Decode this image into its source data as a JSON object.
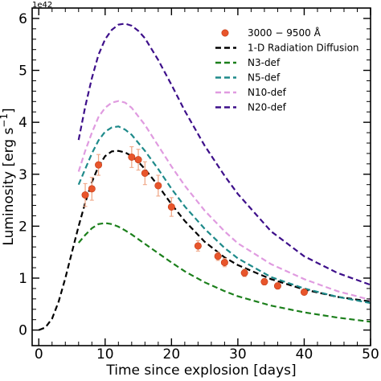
{
  "chart_data": {
    "type": "line",
    "offset_label": "1e42",
    "xlabel": "Time since explosion [days]",
    "ylabel": "Luminosity [erg s$^{-1}$]",
    "xlim": [
      -1,
      50
    ],
    "ylim": [
      -0.3,
      6.2
    ],
    "xticks": [
      0,
      10,
      20,
      30,
      40,
      50
    ],
    "yticks": [
      0,
      1,
      2,
      3,
      4,
      5,
      6
    ],
    "legend_position": "upper right",
    "observations": {
      "name": "3000 − 9500 Å",
      "color": "#e8552b",
      "errorbar_color": "#f0a888",
      "points": [
        {
          "x": 7.0,
          "y": 2.6,
          "err": 0.22
        },
        {
          "x": 8.0,
          "y": 2.72,
          "err": 0.22
        },
        {
          "x": 9.0,
          "y": 3.18,
          "err": 0.2
        },
        {
          "x": 14.0,
          "y": 3.33,
          "err": 0.2
        },
        {
          "x": 15.0,
          "y": 3.28,
          "err": 0.2
        },
        {
          "x": 16.0,
          "y": 3.02,
          "err": 0.22
        },
        {
          "x": 18.0,
          "y": 2.78,
          "err": 0.2
        },
        {
          "x": 20.0,
          "y": 2.37,
          "err": 0.18
        },
        {
          "x": 24.0,
          "y": 1.62,
          "err": 0.1
        },
        {
          "x": 27.0,
          "y": 1.42,
          "err": 0.08
        },
        {
          "x": 28.0,
          "y": 1.3,
          "err": 0.08
        },
        {
          "x": 31.0,
          "y": 1.1,
          "err": 0.07
        },
        {
          "x": 34.0,
          "y": 0.93,
          "err": 0.06
        },
        {
          "x": 36.0,
          "y": 0.85,
          "err": 0.06
        },
        {
          "x": 40.0,
          "y": 0.73,
          "err": 0.05
        }
      ]
    },
    "series": [
      {
        "name": "1-D Radiation Diffusion",
        "color": "#000000",
        "x": [
          0,
          1,
          2,
          3,
          4,
          5,
          6,
          7,
          8,
          9,
          10,
          11,
          12,
          13,
          14,
          15,
          16,
          18,
          20,
          22,
          25,
          28,
          30,
          35,
          40,
          45,
          50
        ],
        "y": [
          0.0,
          0.05,
          0.22,
          0.55,
          1.0,
          1.5,
          2.0,
          2.45,
          2.85,
          3.15,
          3.35,
          3.44,
          3.45,
          3.42,
          3.35,
          3.24,
          3.1,
          2.78,
          2.42,
          2.1,
          1.7,
          1.4,
          1.25,
          0.98,
          0.78,
          0.64,
          0.55
        ]
      },
      {
        "name": "N3-def",
        "color": "#1b7f1b",
        "x": [
          6,
          7,
          8,
          9,
          10,
          11,
          12,
          13,
          14,
          16,
          18,
          20,
          22,
          25,
          28,
          30,
          35,
          40,
          45,
          50
        ],
        "y": [
          1.68,
          1.83,
          1.96,
          2.04,
          2.06,
          2.04,
          1.99,
          1.92,
          1.84,
          1.66,
          1.48,
          1.3,
          1.13,
          0.92,
          0.75,
          0.65,
          0.47,
          0.34,
          0.24,
          0.16
        ]
      },
      {
        "name": "N5-def",
        "color": "#1e8a8a",
        "x": [
          6,
          7,
          8,
          9,
          10,
          11,
          12,
          13,
          14,
          16,
          18,
          20,
          22,
          25,
          28,
          30,
          35,
          40,
          45,
          50
        ],
        "y": [
          2.8,
          3.1,
          3.4,
          3.65,
          3.82,
          3.9,
          3.92,
          3.86,
          3.76,
          3.45,
          3.1,
          2.72,
          2.38,
          1.95,
          1.58,
          1.38,
          1.02,
          0.8,
          0.64,
          0.52
        ]
      },
      {
        "name": "N10-def",
        "color": "#e09be0",
        "x": [
          6,
          7,
          8,
          9,
          10,
          11,
          12,
          13,
          14,
          16,
          18,
          20,
          22,
          25,
          28,
          30,
          35,
          40,
          45,
          50
        ],
        "y": [
          3.05,
          3.45,
          3.8,
          4.1,
          4.28,
          4.38,
          4.41,
          4.38,
          4.28,
          3.95,
          3.55,
          3.15,
          2.78,
          2.3,
          1.9,
          1.67,
          1.27,
          0.98,
          0.75,
          0.58
        ]
      },
      {
        "name": "N20-def",
        "color": "#3d0f8a",
        "x": [
          6,
          7,
          8,
          9,
          10,
          11,
          12,
          13,
          14,
          15,
          16,
          18,
          20,
          22,
          25,
          28,
          30,
          35,
          40,
          45,
          50
        ],
        "y": [
          3.66,
          4.3,
          4.85,
          5.3,
          5.6,
          5.78,
          5.88,
          5.9,
          5.86,
          5.76,
          5.62,
          5.2,
          4.72,
          4.22,
          3.55,
          2.97,
          2.62,
          1.9,
          1.42,
          1.1,
          0.87
        ]
      }
    ]
  }
}
